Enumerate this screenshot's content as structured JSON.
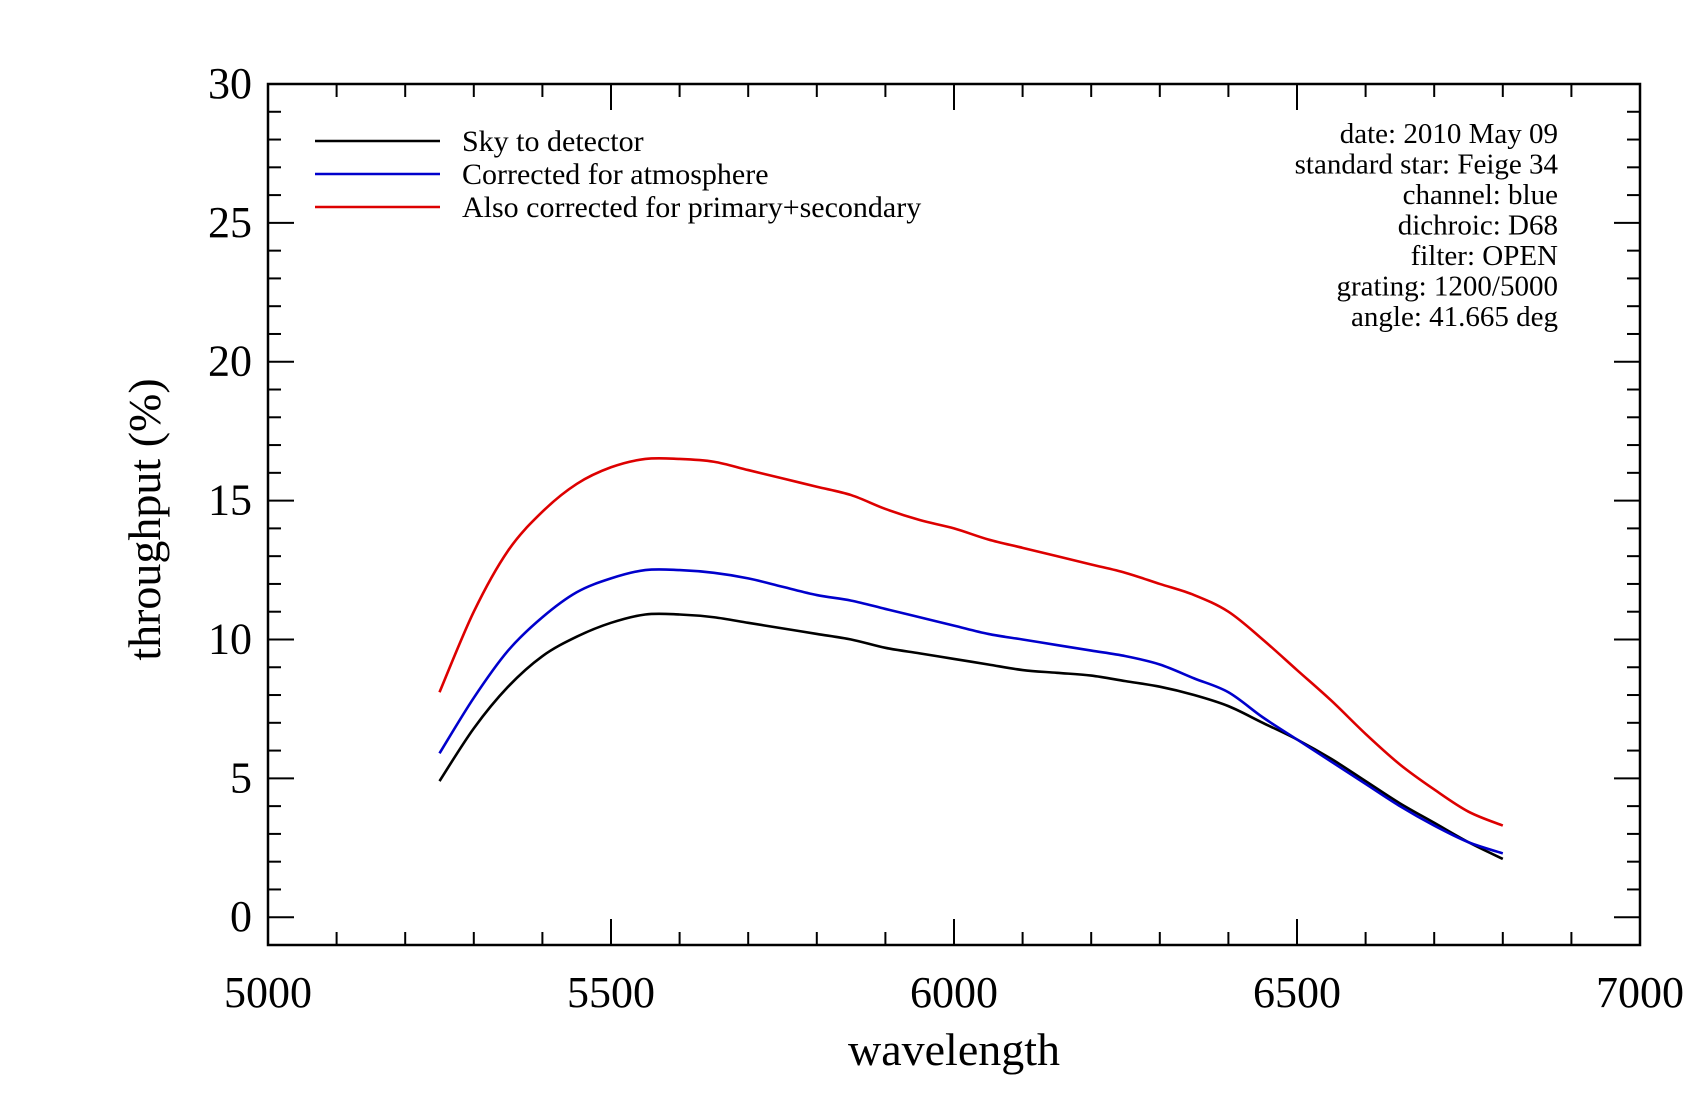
{
  "chart_data": {
    "type": "line",
    "xlabel": "wavelength",
    "ylabel": "throughput (%)",
    "xlim": [
      5000,
      7000
    ],
    "ylim": [
      -1,
      30
    ],
    "x_ticks": [
      5000,
      5500,
      6000,
      6500,
      7000
    ],
    "x_tick_labels": [
      "5000",
      "5500",
      "6000",
      "6500",
      "7000"
    ],
    "y_ticks": [
      0,
      5,
      10,
      15,
      20,
      25,
      30
    ],
    "y_tick_labels": [
      "0",
      "5",
      "10",
      "15",
      "20",
      "25",
      "30"
    ],
    "grid": false,
    "legend_position": "top-left",
    "series": [
      {
        "name": "Sky to detector",
        "color": "#000000",
        "x": [
          5250,
          5300,
          5350,
          5400,
          5450,
          5500,
          5550,
          5600,
          5650,
          5700,
          5750,
          5800,
          5850,
          5900,
          5950,
          6000,
          6050,
          6100,
          6150,
          6200,
          6250,
          6300,
          6350,
          6400,
          6450,
          6500,
          6550,
          6600,
          6650,
          6700,
          6750,
          6800
        ],
        "y": [
          4.9,
          6.8,
          8.3,
          9.4,
          10.1,
          10.6,
          10.9,
          10.9,
          10.8,
          10.6,
          10.4,
          10.2,
          10.0,
          9.7,
          9.5,
          9.3,
          9.1,
          8.9,
          8.8,
          8.7,
          8.5,
          8.3,
          8.0,
          7.6,
          7.0,
          6.4,
          5.7,
          4.9,
          4.1,
          3.4,
          2.7,
          2.1
        ]
      },
      {
        "name": "Corrected for atmosphere",
        "color": "#0000cc",
        "x": [
          5250,
          5300,
          5350,
          5400,
          5450,
          5500,
          5550,
          5600,
          5650,
          5700,
          5750,
          5800,
          5850,
          5900,
          5950,
          6000,
          6050,
          6100,
          6150,
          6200,
          6250,
          6300,
          6350,
          6400,
          6450,
          6500,
          6550,
          6600,
          6650,
          6700,
          6750,
          6800
        ],
        "y": [
          5.9,
          7.9,
          9.6,
          10.8,
          11.7,
          12.2,
          12.5,
          12.5,
          12.4,
          12.2,
          11.9,
          11.6,
          11.4,
          11.1,
          10.8,
          10.5,
          10.2,
          10.0,
          9.8,
          9.6,
          9.4,
          9.1,
          8.6,
          8.1,
          7.2,
          6.4,
          5.6,
          4.8,
          4.0,
          3.3,
          2.7,
          2.3
        ]
      },
      {
        "name": "Also corrected for primary+secondary",
        "color": "#dd0000",
        "x": [
          5250,
          5300,
          5350,
          5400,
          5450,
          5500,
          5550,
          5600,
          5650,
          5700,
          5750,
          5800,
          5850,
          5900,
          5950,
          6000,
          6050,
          6100,
          6150,
          6200,
          6250,
          6300,
          6350,
          6400,
          6450,
          6500,
          6550,
          6600,
          6650,
          6700,
          6750,
          6800
        ],
        "y": [
          8.1,
          11.0,
          13.2,
          14.6,
          15.6,
          16.2,
          16.5,
          16.5,
          16.4,
          16.1,
          15.8,
          15.5,
          15.2,
          14.7,
          14.3,
          14.0,
          13.6,
          13.3,
          13.0,
          12.7,
          12.4,
          12.0,
          11.6,
          11.0,
          10.0,
          8.9,
          7.8,
          6.6,
          5.5,
          4.6,
          3.8,
          3.3
        ]
      }
    ],
    "annotations": [
      "date: 2010 May 09",
      "standard star: Feige 34",
      "channel: blue",
      "dichroic: D68",
      "filter: OPEN",
      "grating: 1200/5000",
      "angle: 41.665 deg"
    ]
  }
}
